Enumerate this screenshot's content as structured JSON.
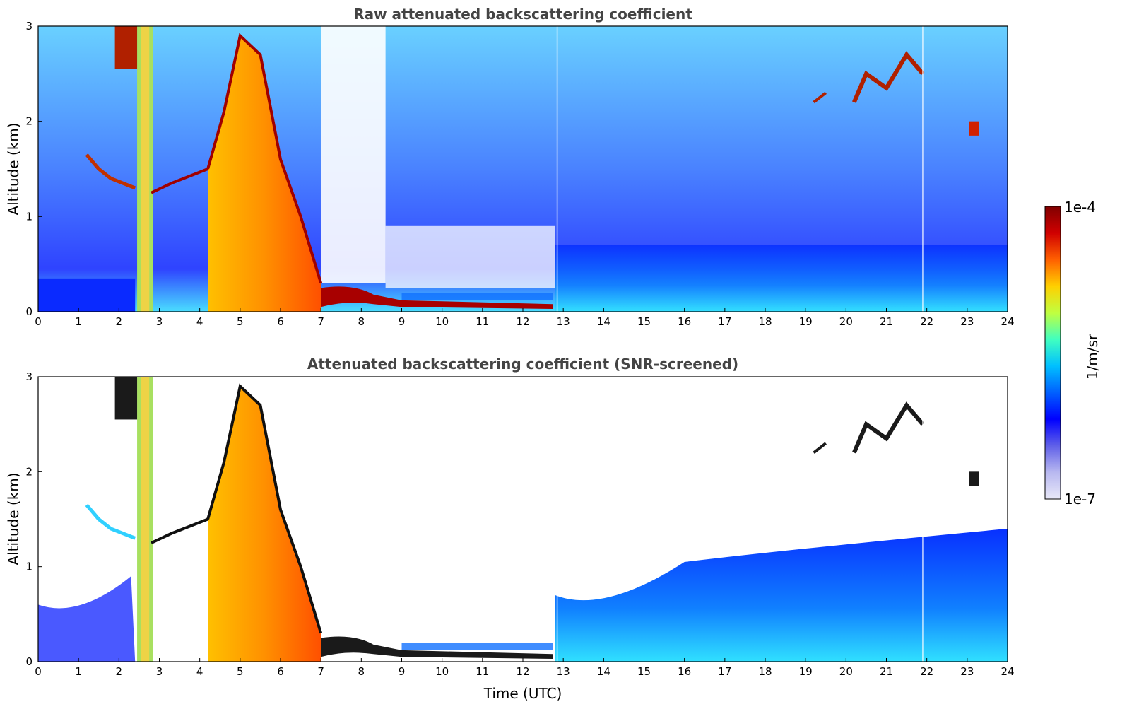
{
  "chart_data": [
    {
      "type": "heatmap",
      "title": "Raw attenuated backscattering coefficient",
      "xlabel": "",
      "ylabel": "Altitude (km)",
      "xlim": [
        0,
        24
      ],
      "ylim": [
        0,
        3
      ],
      "xticks": [
        "0",
        "1",
        "2",
        "3",
        "4",
        "5",
        "6",
        "7",
        "8",
        "9",
        "10",
        "11",
        "12",
        "13",
        "14",
        "15",
        "16",
        "17",
        "18",
        "19",
        "20",
        "21",
        "22",
        "23",
        "24"
      ],
      "yticks": [
        "0",
        "1",
        "2",
        "3"
      ],
      "features": [
        {
          "name": "low-cloud-base",
          "t_start": 7.0,
          "t_end": 12.75,
          "alt_km": [
            0.05,
            0.25
          ],
          "level": "high"
        },
        {
          "name": "mid-cloud",
          "t_start": 4.2,
          "t_end": 7.0,
          "alt_km": [
            0.0,
            3.0
          ],
          "level": "medium-high"
        },
        {
          "name": "cirrus-left",
          "t_start": 1.8,
          "t_end": 2.5,
          "alt_km": [
            2.5,
            3.0
          ],
          "level": "high"
        },
        {
          "name": "upper-cloud-right",
          "t_start": 20.2,
          "t_end": 21.9,
          "alt_km": [
            2.1,
            2.8
          ],
          "level": "high"
        },
        {
          "name": "boundary-layer",
          "t_start": 12.8,
          "t_end": 24,
          "alt_km": [
            0.0,
            0.7
          ],
          "level": "low-medium"
        }
      ]
    },
    {
      "type": "heatmap",
      "title": "Attenuated backscattering coefficient (SNR-screened)",
      "xlabel": "Time (UTC)",
      "ylabel": "Altitude (km)",
      "xlim": [
        0,
        24
      ],
      "ylim": [
        0,
        3
      ],
      "xticks": [
        "0",
        "1",
        "2",
        "3",
        "4",
        "5",
        "6",
        "7",
        "8",
        "9",
        "10",
        "11",
        "12",
        "13",
        "14",
        "15",
        "16",
        "17",
        "18",
        "19",
        "20",
        "21",
        "22",
        "23",
        "24"
      ],
      "yticks": [
        "0",
        "1",
        "2",
        "3"
      ],
      "features": [
        {
          "name": "low-cloud-base",
          "t_start": 7.0,
          "t_end": 12.75,
          "alt_km": [
            0.05,
            0.25
          ],
          "level": "high"
        },
        {
          "name": "mid-cloud",
          "t_start": 4.2,
          "t_end": 7.0,
          "alt_km": [
            0.0,
            3.0
          ],
          "level": "medium-high"
        },
        {
          "name": "boundary-layer",
          "t_start": 12.8,
          "t_end": 24,
          "alt_km": [
            0.0,
            1.4
          ],
          "level": "low-medium"
        }
      ]
    }
  ],
  "colorbar": {
    "label": "1/m/sr",
    "min_label": "1e-7",
    "max_label": "1e-4",
    "colors": [
      "#e8e8f8",
      "#b8b8f0",
      "#6060e8",
      "#0000ff",
      "#0060ff",
      "#00c0ff",
      "#40ffc0",
      "#c0ff40",
      "#ffd000",
      "#ff6000",
      "#d00000",
      "#800000"
    ]
  }
}
